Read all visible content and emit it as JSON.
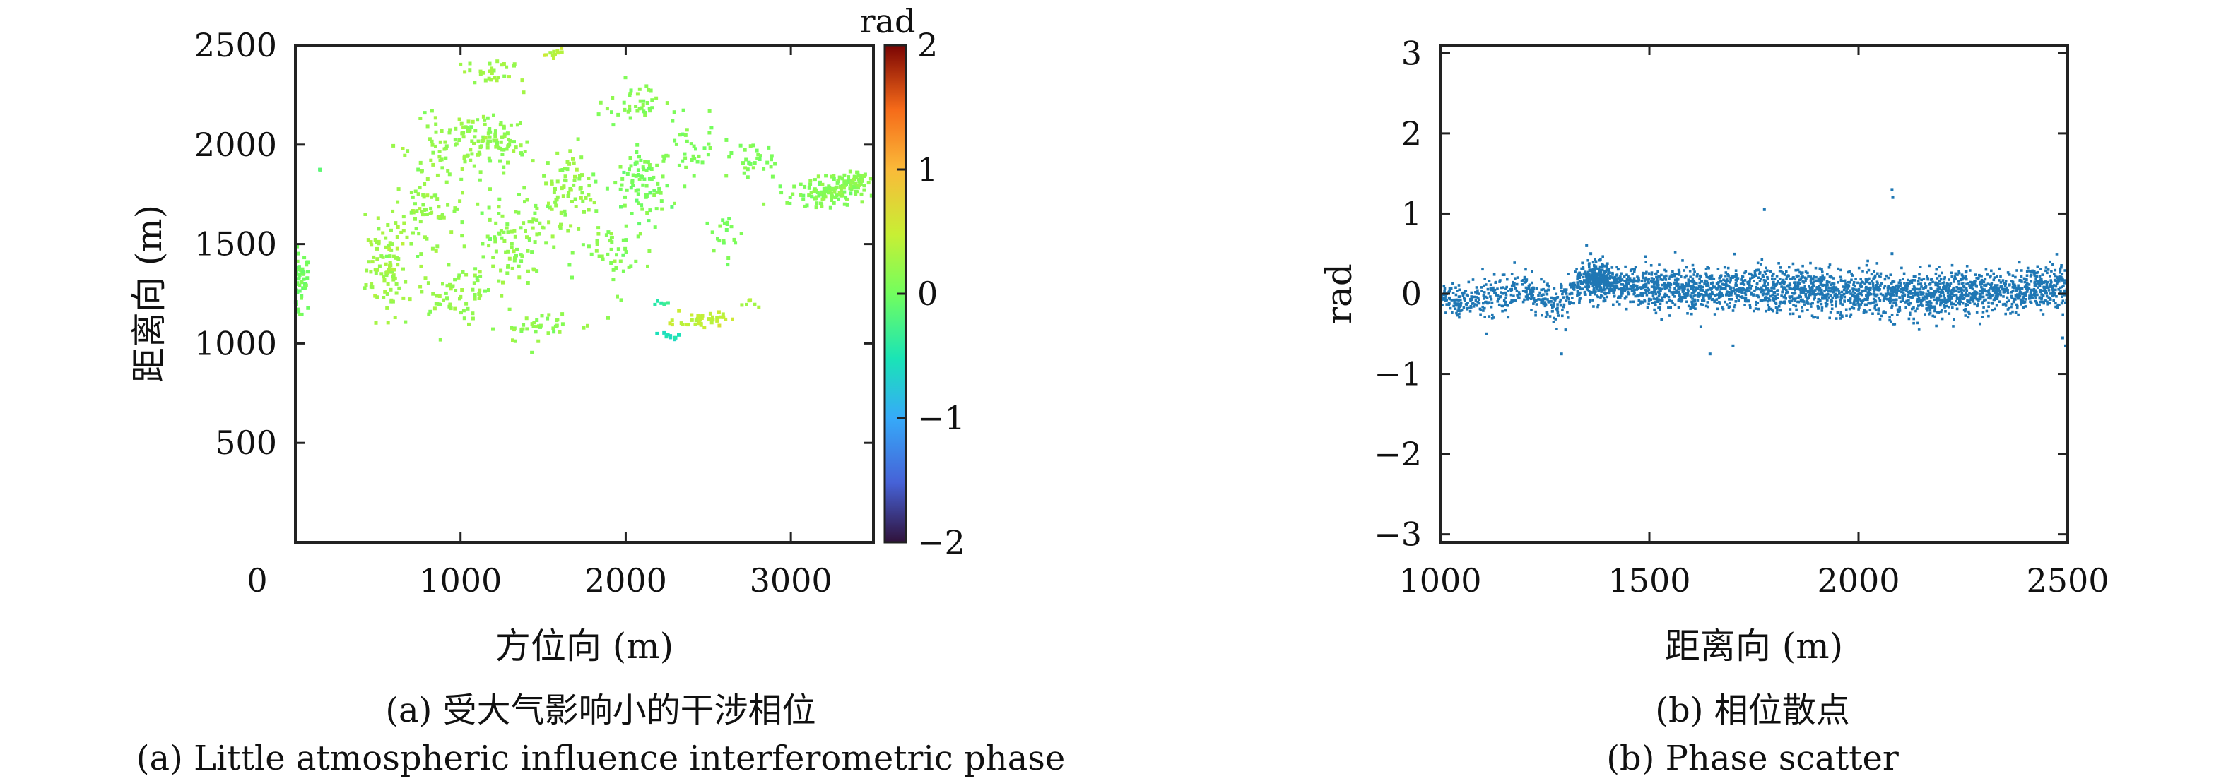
{
  "panels": {
    "a": {
      "caption_cn": "(a) 受大气影响小的干涉相位",
      "caption_en": "(a) Little atmospheric influence interferometric phase"
    },
    "b": {
      "caption_cn": "(b) 相位散点",
      "caption_en": "(b) Phase scatter"
    }
  },
  "chart_data": [
    {
      "type": "scatter",
      "xlabel": "方位向 (m)",
      "ylabel": "距离向 (m)",
      "xlim": [
        0,
        3500
      ],
      "ylim": [
        0,
        2500
      ],
      "x_ticks": [
        0,
        1000,
        2000,
        3000
      ],
      "x_tick_labels": [
        "0",
        "1000",
        "2000",
        "3000"
      ],
      "y_ticks": [
        500,
        1000,
        1500,
        2000,
        2500
      ],
      "y_tick_labels": [
        "500",
        "1000",
        "1500",
        "2000",
        "2500"
      ],
      "grid": false,
      "colorbar": {
        "title": "rad",
        "range": [
          -2,
          2
        ],
        "ticks": [
          2,
          1,
          0,
          -1,
          -2
        ],
        "tick_labels": [
          "2",
          "1",
          "0",
          "−1",
          "−2"
        ],
        "colormap": "jet-like (dark blue → cyan → green → yellow → orange → dark red)"
      },
      "clusters": [
        {
          "x": 30,
          "y": 1300,
          "rx": 60,
          "ry": 150,
          "n": 60,
          "phase": 0.0
        },
        {
          "x": 150,
          "y": 1870,
          "rx": 10,
          "ry": 10,
          "n": 2,
          "phase": -0.2
        },
        {
          "x": 550,
          "y": 1380,
          "rx": 120,
          "ry": 240,
          "n": 90,
          "phase": 0.25
        },
        {
          "x": 800,
          "y": 1650,
          "rx": 200,
          "ry": 200,
          "n": 70,
          "phase": 0.2
        },
        {
          "x": 900,
          "y": 2000,
          "rx": 300,
          "ry": 180,
          "n": 70,
          "phase": 0.2
        },
        {
          "x": 950,
          "y": 1260,
          "rx": 250,
          "ry": 120,
          "n": 60,
          "phase": 0.2
        },
        {
          "x": 1200,
          "y": 2020,
          "rx": 200,
          "ry": 120,
          "n": 80,
          "phase": 0.15
        },
        {
          "x": 1300,
          "y": 1550,
          "rx": 300,
          "ry": 260,
          "n": 110,
          "phase": 0.15
        },
        {
          "x": 1200,
          "y": 2350,
          "rx": 180,
          "ry": 80,
          "n": 30,
          "phase": 0.25
        },
        {
          "x": 1650,
          "y": 1800,
          "rx": 150,
          "ry": 200,
          "n": 70,
          "phase": 0.2
        },
        {
          "x": 1550,
          "y": 2460,
          "rx": 80,
          "ry": 30,
          "n": 12,
          "phase": 0.4
        },
        {
          "x": 1500,
          "y": 1080,
          "rx": 300,
          "ry": 80,
          "n": 40,
          "phase": 0.15
        },
        {
          "x": 2100,
          "y": 1800,
          "rx": 150,
          "ry": 180,
          "n": 80,
          "phase": 0.05
        },
        {
          "x": 2050,
          "y": 2200,
          "rx": 180,
          "ry": 100,
          "n": 40,
          "phase": 0.1
        },
        {
          "x": 1950,
          "y": 1450,
          "rx": 220,
          "ry": 180,
          "n": 50,
          "phase": 0.1
        },
        {
          "x": 2400,
          "y": 1950,
          "rx": 250,
          "ry": 150,
          "n": 40,
          "phase": 0.05
        },
        {
          "x": 2450,
          "y": 1120,
          "rx": 150,
          "ry": 40,
          "n": 40,
          "phase": 0.45
        },
        {
          "x": 2280,
          "y": 1040,
          "rx": 60,
          "ry": 15,
          "n": 10,
          "phase": -0.55
        },
        {
          "x": 2200,
          "y": 1200,
          "rx": 60,
          "ry": 20,
          "n": 6,
          "phase": -0.35
        },
        {
          "x": 2750,
          "y": 1200,
          "rx": 60,
          "ry": 20,
          "n": 6,
          "phase": 0.3
        },
        {
          "x": 2800,
          "y": 1920,
          "rx": 150,
          "ry": 100,
          "n": 30,
          "phase": 0.05
        },
        {
          "x": 3200,
          "y": 1760,
          "rx": 220,
          "ry": 80,
          "n": 120,
          "phase": 0.1
        },
        {
          "x": 3400,
          "y": 1820,
          "rx": 80,
          "ry": 60,
          "n": 40,
          "phase": 0.15
        },
        {
          "x": 2600,
          "y": 1550,
          "rx": 120,
          "ry": 120,
          "n": 20,
          "phase": 0.05
        }
      ]
    },
    {
      "type": "scatter",
      "xlabel": "距离向 (m)",
      "ylabel": "rad",
      "xlim": [
        1000,
        2500
      ],
      "ylim": [
        -3.1,
        3.1
      ],
      "x_ticks": [
        1000,
        1500,
        2000,
        2500
      ],
      "x_tick_labels": [
        "1000",
        "1500",
        "2000",
        "2500"
      ],
      "y_ticks": [
        3,
        2,
        1,
        0,
        -1,
        -2,
        -3
      ],
      "y_tick_labels": [
        "3",
        "2",
        "1",
        "0",
        "−1",
        "−2",
        "−3"
      ],
      "grid": false,
      "marker_color": "#1f77b4",
      "trend": [
        {
          "x": 1000,
          "y": 0.0,
          "spread": 0.12
        },
        {
          "x": 1050,
          "y": -0.1,
          "spread": 0.25
        },
        {
          "x": 1120,
          "y": -0.05,
          "spread": 0.3
        },
        {
          "x": 1200,
          "y": 0.05,
          "spread": 0.2
        },
        {
          "x": 1280,
          "y": -0.1,
          "spread": 0.3
        },
        {
          "x": 1350,
          "y": 0.2,
          "spread": 0.25
        },
        {
          "x": 1450,
          "y": 0.08,
          "spread": 0.25
        },
        {
          "x": 1600,
          "y": 0.05,
          "spread": 0.3
        },
        {
          "x": 1800,
          "y": 0.05,
          "spread": 0.3
        },
        {
          "x": 2000,
          "y": 0.0,
          "spread": 0.3
        },
        {
          "x": 2200,
          "y": 0.0,
          "spread": 0.3
        },
        {
          "x": 2400,
          "y": 0.05,
          "spread": 0.28
        },
        {
          "x": 2500,
          "y": 0.1,
          "spread": 0.35
        }
      ],
      "outliers": [
        {
          "x": 1290,
          "y": -0.75
        },
        {
          "x": 1300,
          "y": -0.45
        },
        {
          "x": 1110,
          "y": -0.5
        },
        {
          "x": 1775,
          "y": 1.05
        },
        {
          "x": 2080,
          "y": 1.3
        },
        {
          "x": 2082,
          "y": 1.2
        },
        {
          "x": 2080,
          "y": 0.5
        },
        {
          "x": 1645,
          "y": -0.75
        },
        {
          "x": 1700,
          "y": -0.65
        },
        {
          "x": 2495,
          "y": -0.65
        },
        {
          "x": 2488,
          "y": -0.55
        },
        {
          "x": 1350,
          "y": 0.6
        },
        {
          "x": 1360,
          "y": 0.5
        }
      ]
    }
  ]
}
